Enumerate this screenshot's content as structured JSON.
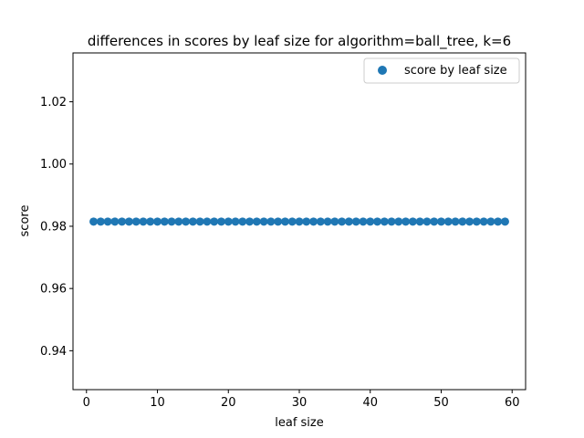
{
  "chart_data": {
    "type": "scatter",
    "title": "differences in scores by leaf size for algorithm=ball_tree, k=6",
    "xlabel": "leaf size",
    "ylabel": "score",
    "xlim": [
      -1.9,
      61.9
    ],
    "ylim": [
      0.9275,
      1.0357
    ],
    "xticks": [
      0,
      10,
      20,
      30,
      40,
      50,
      60
    ],
    "xtick_labels": [
      "0",
      "10",
      "20",
      "30",
      "40",
      "50",
      "60"
    ],
    "yticks": [
      0.94,
      0.96,
      0.98,
      1.0,
      1.02
    ],
    "ytick_labels": [
      "0.94",
      "0.96",
      "0.98",
      "1.00",
      "1.02"
    ],
    "grid": false,
    "legend_position": "top-right",
    "series": [
      {
        "name": "score by leaf size",
        "color": "#1f77b4",
        "marker": "circle",
        "x": [
          1,
          2,
          3,
          4,
          5,
          6,
          7,
          8,
          9,
          10,
          11,
          12,
          13,
          14,
          15,
          16,
          17,
          18,
          19,
          20,
          21,
          22,
          23,
          24,
          25,
          26,
          27,
          28,
          29,
          30,
          31,
          32,
          33,
          34,
          35,
          36,
          37,
          38,
          39,
          40,
          41,
          42,
          43,
          44,
          45,
          46,
          47,
          48,
          49,
          50,
          51,
          52,
          53,
          54,
          55,
          56,
          57,
          58,
          59
        ],
        "y": [
          0.9815,
          0.9815,
          0.9815,
          0.9815,
          0.9815,
          0.9815,
          0.9815,
          0.9815,
          0.9815,
          0.9815,
          0.9815,
          0.9815,
          0.9815,
          0.9815,
          0.9815,
          0.9815,
          0.9815,
          0.9815,
          0.9815,
          0.9815,
          0.9815,
          0.9815,
          0.9815,
          0.9815,
          0.9815,
          0.9815,
          0.9815,
          0.9815,
          0.9815,
          0.9815,
          0.9815,
          0.9815,
          0.9815,
          0.9815,
          0.9815,
          0.9815,
          0.9815,
          0.9815,
          0.9815,
          0.9815,
          0.9815,
          0.9815,
          0.9815,
          0.9815,
          0.9815,
          0.9815,
          0.9815,
          0.9815,
          0.9815,
          0.9815,
          0.9815,
          0.9815,
          0.9815,
          0.9815,
          0.9815,
          0.9815,
          0.9815,
          0.9815,
          0.9815
        ]
      }
    ]
  }
}
